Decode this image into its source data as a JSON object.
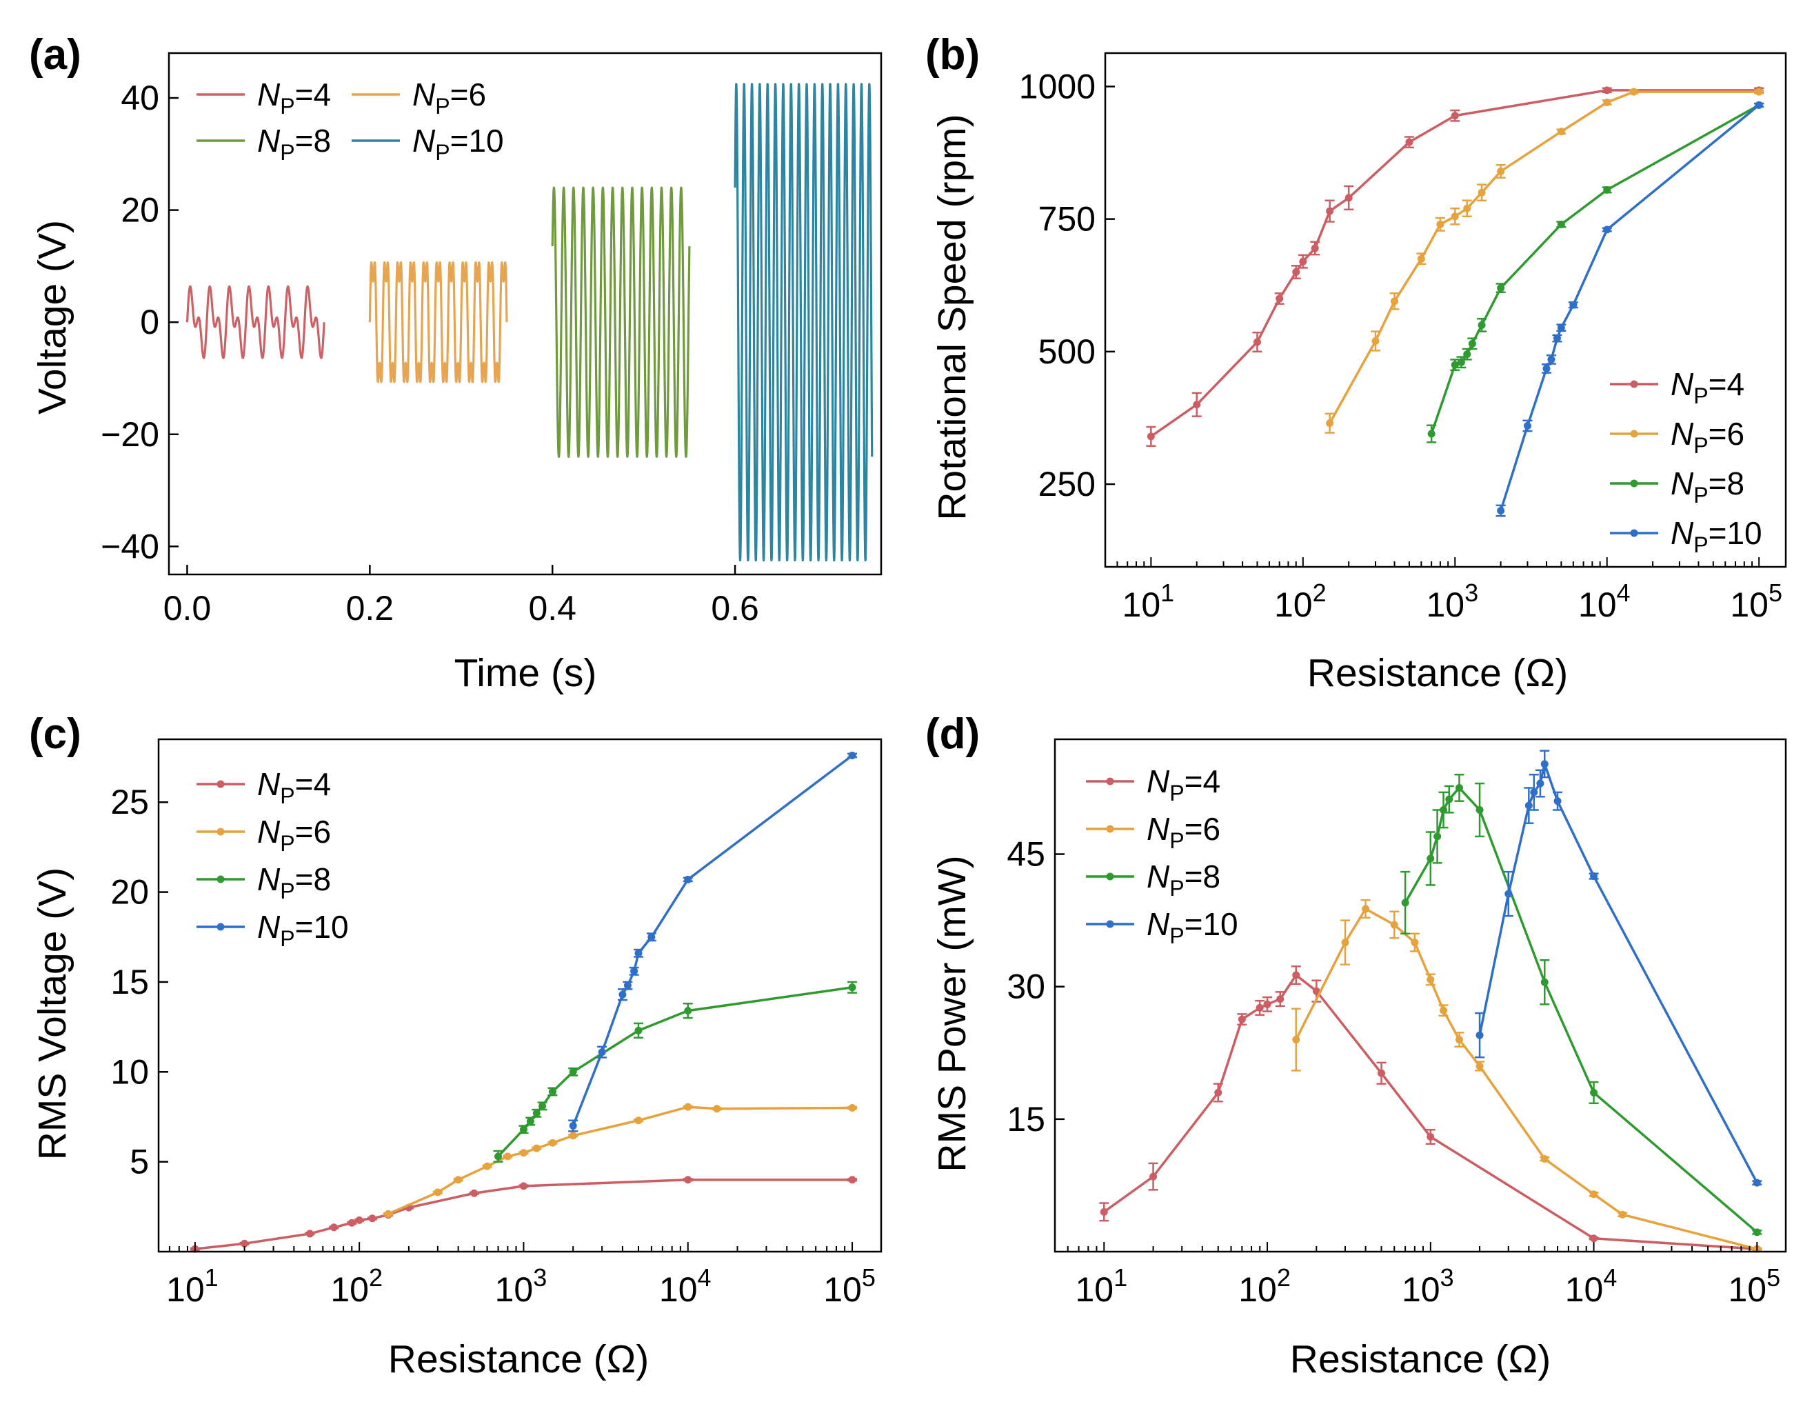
{
  "colors": {
    "np4": "#cc6166",
    "np6": "#e8a551",
    "np8": "#6f9a3e",
    "np10": "#2c86a2"
  },
  "colors_panels": {
    "np4": "#cc5d63",
    "np6": "#e6a33d",
    "np8": "#2f9a2f",
    "np10": "#2f6fc8"
  },
  "chart_data": [
    {
      "id": "a",
      "type": "line",
      "panel_label": "(a)",
      "xlabel": "Time (s)",
      "ylabel": "Voltage (V)",
      "xlim": [
        -0.02,
        0.76
      ],
      "ylim": [
        -45,
        48
      ],
      "xticks": [
        0.0,
        0.2,
        0.4,
        0.6
      ],
      "xtick_labels": [
        "0.0",
        "0.2",
        "0.4",
        "0.6"
      ],
      "yticks": [
        -40,
        -20,
        0,
        20,
        40
      ],
      "ytick_labels": [
        "−40",
        "−20",
        "0",
        "20",
        "40"
      ],
      "legend_position": "top-left",
      "series": [
        {
          "name_sub": "P",
          "name_rest": "=4",
          "key": "np4",
          "t_start": 0.0,
          "t_end": 0.15,
          "amplitude": 7.3,
          "cycles": 7,
          "shape": "double-peak"
        },
        {
          "name_sub": "P",
          "name_rest": "=6",
          "key": "np6",
          "t_start": 0.2,
          "t_end": 0.35,
          "amplitude": 11.5,
          "cycles": 10.5,
          "shape": "square-ish"
        },
        {
          "name_sub": "P",
          "name_rest": "=8",
          "key": "np8",
          "t_start": 0.4,
          "t_end": 0.55,
          "amplitude": 24,
          "cycles": 14,
          "shape": "sine"
        },
        {
          "name_sub": "P",
          "name_rest": "=10",
          "key": "np10",
          "t_start": 0.6,
          "t_end": 0.75,
          "amplitude": 42.5,
          "cycles": 17.5,
          "shape": "sine"
        }
      ]
    },
    {
      "id": "b",
      "type": "line",
      "panel_label": "(b)",
      "xlabel": "Resistance (Ω)",
      "ylabel": "Rotational Speed (rpm)",
      "xscale": "log",
      "xlim": [
        5,
        150000
      ],
      "ylim": [
        94,
        1063
      ],
      "xtick_exponents": [
        "1",
        "2",
        "3",
        "4",
        "5"
      ],
      "yticks": [
        250,
        500,
        750,
        1000
      ],
      "ytick_labels": [
        "250",
        "500",
        "750",
        "1000"
      ],
      "legend_position": "bottom-right",
      "series": [
        {
          "name_sub": "P",
          "name_rest": "=4",
          "key": "np4",
          "x": [
            10,
            20,
            50,
            70,
            90,
            100,
            120,
            150,
            200,
            500,
            1000,
            10000,
            100000
          ],
          "y": [
            340,
            400,
            518,
            600,
            650,
            670,
            695,
            765,
            790,
            895,
            945,
            993,
            993
          ],
          "err": [
            18,
            22,
            18,
            10,
            12,
            12,
            12,
            20,
            22,
            10,
            10,
            4,
            4
          ]
        },
        {
          "name_sub": "P",
          "name_rest": "=6",
          "key": "np6",
          "x": [
            150,
            300,
            400,
            600,
            800,
            1000,
            1200,
            1500,
            2000,
            5000,
            10000,
            15000,
            100000
          ],
          "y": [
            365,
            520,
            595,
            675,
            740,
            755,
            770,
            800,
            840,
            915,
            970,
            990,
            990
          ],
          "err": [
            18,
            18,
            15,
            10,
            12,
            15,
            15,
            15,
            12,
            4,
            4,
            3,
            3
          ]
        },
        {
          "name_sub": "P",
          "name_rest": "=8",
          "key": "np8",
          "x": [
            700,
            1000,
            1100,
            1200,
            1300,
            1500,
            2000,
            5000,
            10000,
            100000
          ],
          "y": [
            345,
            475,
            480,
            495,
            515,
            550,
            620,
            740,
            805,
            965
          ],
          "err": [
            16,
            10,
            10,
            10,
            10,
            12,
            8,
            5,
            5,
            3
          ]
        },
        {
          "name_sub": "P",
          "name_rest": "=10",
          "key": "np10",
          "x": [
            2000,
            3000,
            4000,
            4300,
            4700,
            5000,
            6000,
            10000,
            100000
          ],
          "y": [
            200,
            360,
            468,
            485,
            525,
            545,
            588,
            730,
            965
          ],
          "err": [
            10,
            10,
            8,
            8,
            6,
            6,
            5,
            3,
            3
          ]
        }
      ]
    },
    {
      "id": "c",
      "type": "line",
      "panel_label": "(c)",
      "xlabel": "Resistance (Ω)",
      "ylabel": "RMS Voltage (V)",
      "xscale": "log",
      "xlim": [
        6,
        150000
      ],
      "ylim": [
        0,
        28.5
      ],
      "xtick_exponents": [
        "1",
        "2",
        "3",
        "4",
        "5"
      ],
      "yticks": [
        5,
        10,
        15,
        20,
        25
      ],
      "ytick_labels": [
        "5",
        "10",
        "15",
        "20",
        "25"
      ],
      "legend_position": "top-left",
      "series": [
        {
          "name_sub": "P",
          "name_rest": "=4",
          "key": "np4",
          "x": [
            10,
            20,
            50,
            70,
            90,
            100,
            120,
            150,
            200,
            500,
            1000,
            10000,
            100000
          ],
          "y": [
            0.15,
            0.45,
            1.0,
            1.35,
            1.6,
            1.75,
            1.85,
            2.05,
            2.45,
            3.25,
            3.65,
            4.0,
            4.0
          ],
          "err": [
            0.05,
            0.05,
            0.05,
            0.05,
            0.05,
            0.05,
            0.05,
            0.05,
            0.05,
            0.05,
            0.05,
            0.05,
            0.05
          ]
        },
        {
          "name_sub": "P",
          "name_rest": "=6",
          "key": "np6",
          "x": [
            150,
            300,
            400,
            600,
            800,
            1000,
            1200,
            1500,
            2000,
            5000,
            10000,
            15000,
            100000
          ],
          "y": [
            2.1,
            3.3,
            4.0,
            4.75,
            5.3,
            5.5,
            5.75,
            6.05,
            6.45,
            7.3,
            8.05,
            7.95,
            8.0
          ],
          "err": [
            0.05,
            0.05,
            0.05,
            0.05,
            0.05,
            0.05,
            0.05,
            0.05,
            0.05,
            0.05,
            0.05,
            0.05,
            0.05
          ]
        },
        {
          "name_sub": "P",
          "name_rest": "=8",
          "key": "np8",
          "x": [
            700,
            1000,
            1100,
            1200,
            1300,
            1500,
            2000,
            5000,
            10000,
            100000
          ],
          "y": [
            5.3,
            6.8,
            7.25,
            7.7,
            8.1,
            8.9,
            10.0,
            12.3,
            13.4,
            14.7
          ],
          "err": [
            0.3,
            0.2,
            0.2,
            0.2,
            0.2,
            0.2,
            0.2,
            0.4,
            0.4,
            0.3
          ]
        },
        {
          "name_sub": "P",
          "name_rest": "=10",
          "key": "np10",
          "x": [
            2000,
            3000,
            4000,
            4300,
            4700,
            5000,
            6000,
            10000,
            100000
          ],
          "y": [
            7.0,
            11.1,
            14.3,
            14.8,
            15.6,
            16.6,
            17.5,
            20.7,
            27.6
          ],
          "err": [
            0.3,
            0.3,
            0.3,
            0.2,
            0.2,
            0.2,
            0.2,
            0.1,
            0.1
          ]
        }
      ]
    },
    {
      "id": "d",
      "type": "line",
      "panel_label": "(d)",
      "xlabel": "Resistance (Ω)",
      "ylabel": "RMS Power (mW)",
      "xscale": "log",
      "xlim": [
        5,
        150000
      ],
      "ylim": [
        0,
        58
      ],
      "xtick_exponents": [
        "1",
        "2",
        "3",
        "4",
        "5"
      ],
      "yticks": [
        15,
        30,
        45
      ],
      "ytick_labels": [
        "15",
        "30",
        "45"
      ],
      "legend_position": "top-left",
      "series": [
        {
          "name_sub": "P",
          "name_rest": "=4",
          "key": "np4",
          "x": [
            10,
            20,
            50,
            70,
            90,
            100,
            120,
            150,
            200,
            500,
            1000,
            10000,
            100000
          ],
          "y": [
            4.5,
            8.5,
            18.0,
            26.3,
            27.6,
            28.0,
            28.6,
            31.3,
            29.5,
            20.2,
            13.0,
            1.5,
            0.3
          ],
          "err": [
            1.0,
            1.5,
            1.0,
            0.6,
            0.8,
            0.8,
            0.8,
            1.0,
            1.2,
            1.2,
            0.8,
            0.1,
            0.1
          ]
        },
        {
          "name_sub": "P",
          "name_rest": "=6",
          "key": "np6",
          "x": [
            150,
            300,
            400,
            600,
            800,
            1000,
            1200,
            1500,
            2000,
            5000,
            10000,
            15000,
            100000
          ],
          "y": [
            24.0,
            35.0,
            38.8,
            37.0,
            35.0,
            30.8,
            27.3,
            24.0,
            21.0,
            10.5,
            6.5,
            4.2,
            0.3
          ],
          "err": [
            3.5,
            2.5,
            1.0,
            1.5,
            1.0,
            0.6,
            0.6,
            0.8,
            0.5,
            0.2,
            0.2,
            0.2,
            0.1
          ]
        },
        {
          "name_sub": "P",
          "name_rest": "=8",
          "key": "np8",
          "x": [
            700,
            1000,
            1100,
            1200,
            1300,
            1500,
            2000,
            5000,
            10000,
            100000
          ],
          "y": [
            39.5,
            44.5,
            47.0,
            50.0,
            51.2,
            52.5,
            50.0,
            30.5,
            18.0,
            2.2
          ],
          "err": [
            3.5,
            3.0,
            3.0,
            2.0,
            1.5,
            1.5,
            3.0,
            2.5,
            1.2,
            0.2
          ]
        },
        {
          "name_sub": "P",
          "name_rest": "=10",
          "key": "np10",
          "x": [
            2000,
            3000,
            4000,
            4300,
            4700,
            5000,
            6000,
            10000,
            100000
          ],
          "y": [
            24.5,
            40.5,
            50.5,
            52.0,
            53.0,
            55.2,
            51.0,
            42.5,
            7.8
          ],
          "err": [
            2.5,
            2.5,
            2.0,
            2.0,
            1.5,
            1.5,
            1.0,
            0.3,
            0.2
          ]
        }
      ]
    }
  ]
}
